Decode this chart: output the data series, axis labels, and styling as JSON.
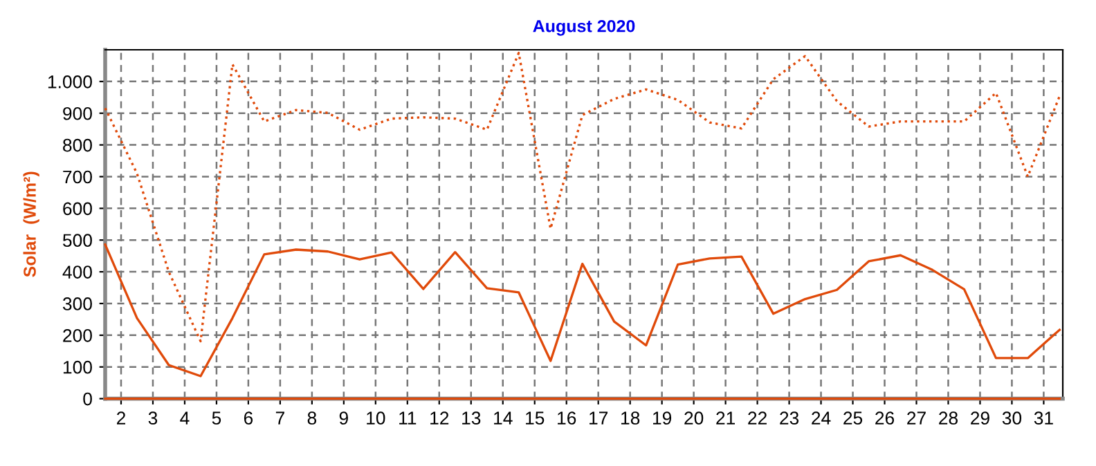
{
  "chart_data": {
    "type": "line",
    "title": "August 2020",
    "ylabel": "Solar  (W/m²)",
    "x": [
      1.5,
      2.5,
      3.5,
      4.5,
      5.5,
      6.5,
      7.5,
      8.5,
      9.5,
      10.5,
      11.5,
      12.5,
      13.5,
      14.5,
      15.5,
      16.5,
      17.5,
      18.5,
      19.5,
      20.5,
      21.5,
      22.5,
      23.5,
      24.5,
      25.5,
      26.5,
      27.5,
      28.5,
      29.5,
      30.5,
      31.5
    ],
    "series": [
      {
        "color": "#e04a0a",
        "line_style": "dotted",
        "values": [
          916,
          710,
          400,
          181,
          1054,
          874,
          910,
          901,
          848,
          883,
          887,
          883,
          848,
          1090,
          536,
          894,
          945,
          975,
          942,
          871,
          852,
          1007,
          1080,
          938,
          858,
          874,
          874,
          874,
          964,
          700,
          954
        ]
      },
      {
        "color": "#e04a0a",
        "line_style": "solid",
        "values": [
          486,
          254,
          106,
          71,
          254,
          455,
          470,
          464,
          439,
          461,
          346,
          462,
          348,
          335,
          119,
          425,
          243,
          168,
          423,
          442,
          448,
          268,
          314,
          343,
          433,
          452,
          406,
          345,
          128,
          128,
          217
        ]
      },
      {
        "color": "#e04a0a",
        "line_style": "solid",
        "values": [
          0,
          0,
          0,
          0,
          0,
          0,
          0,
          0,
          0,
          0,
          0,
          0,
          0,
          0,
          0,
          0,
          0,
          0,
          0,
          0,
          0,
          0,
          0,
          0,
          0,
          0,
          0,
          0,
          0,
          0,
          0
        ]
      }
    ],
    "xlim": [
      1.5,
      31.6
    ],
    "xticks": [
      2,
      3,
      4,
      5,
      6,
      7,
      8,
      9,
      10,
      11,
      12,
      13,
      14,
      15,
      16,
      17,
      18,
      19,
      20,
      21,
      22,
      23,
      24,
      25,
      26,
      27,
      28,
      29,
      30,
      31
    ],
    "ylim": [
      0,
      1100
    ],
    "yticks": [
      0,
      100,
      200,
      300,
      400,
      500,
      600,
      700,
      800,
      900,
      {
        "value": 1000,
        "label": "1.000"
      }
    ],
    "grid": true
  }
}
